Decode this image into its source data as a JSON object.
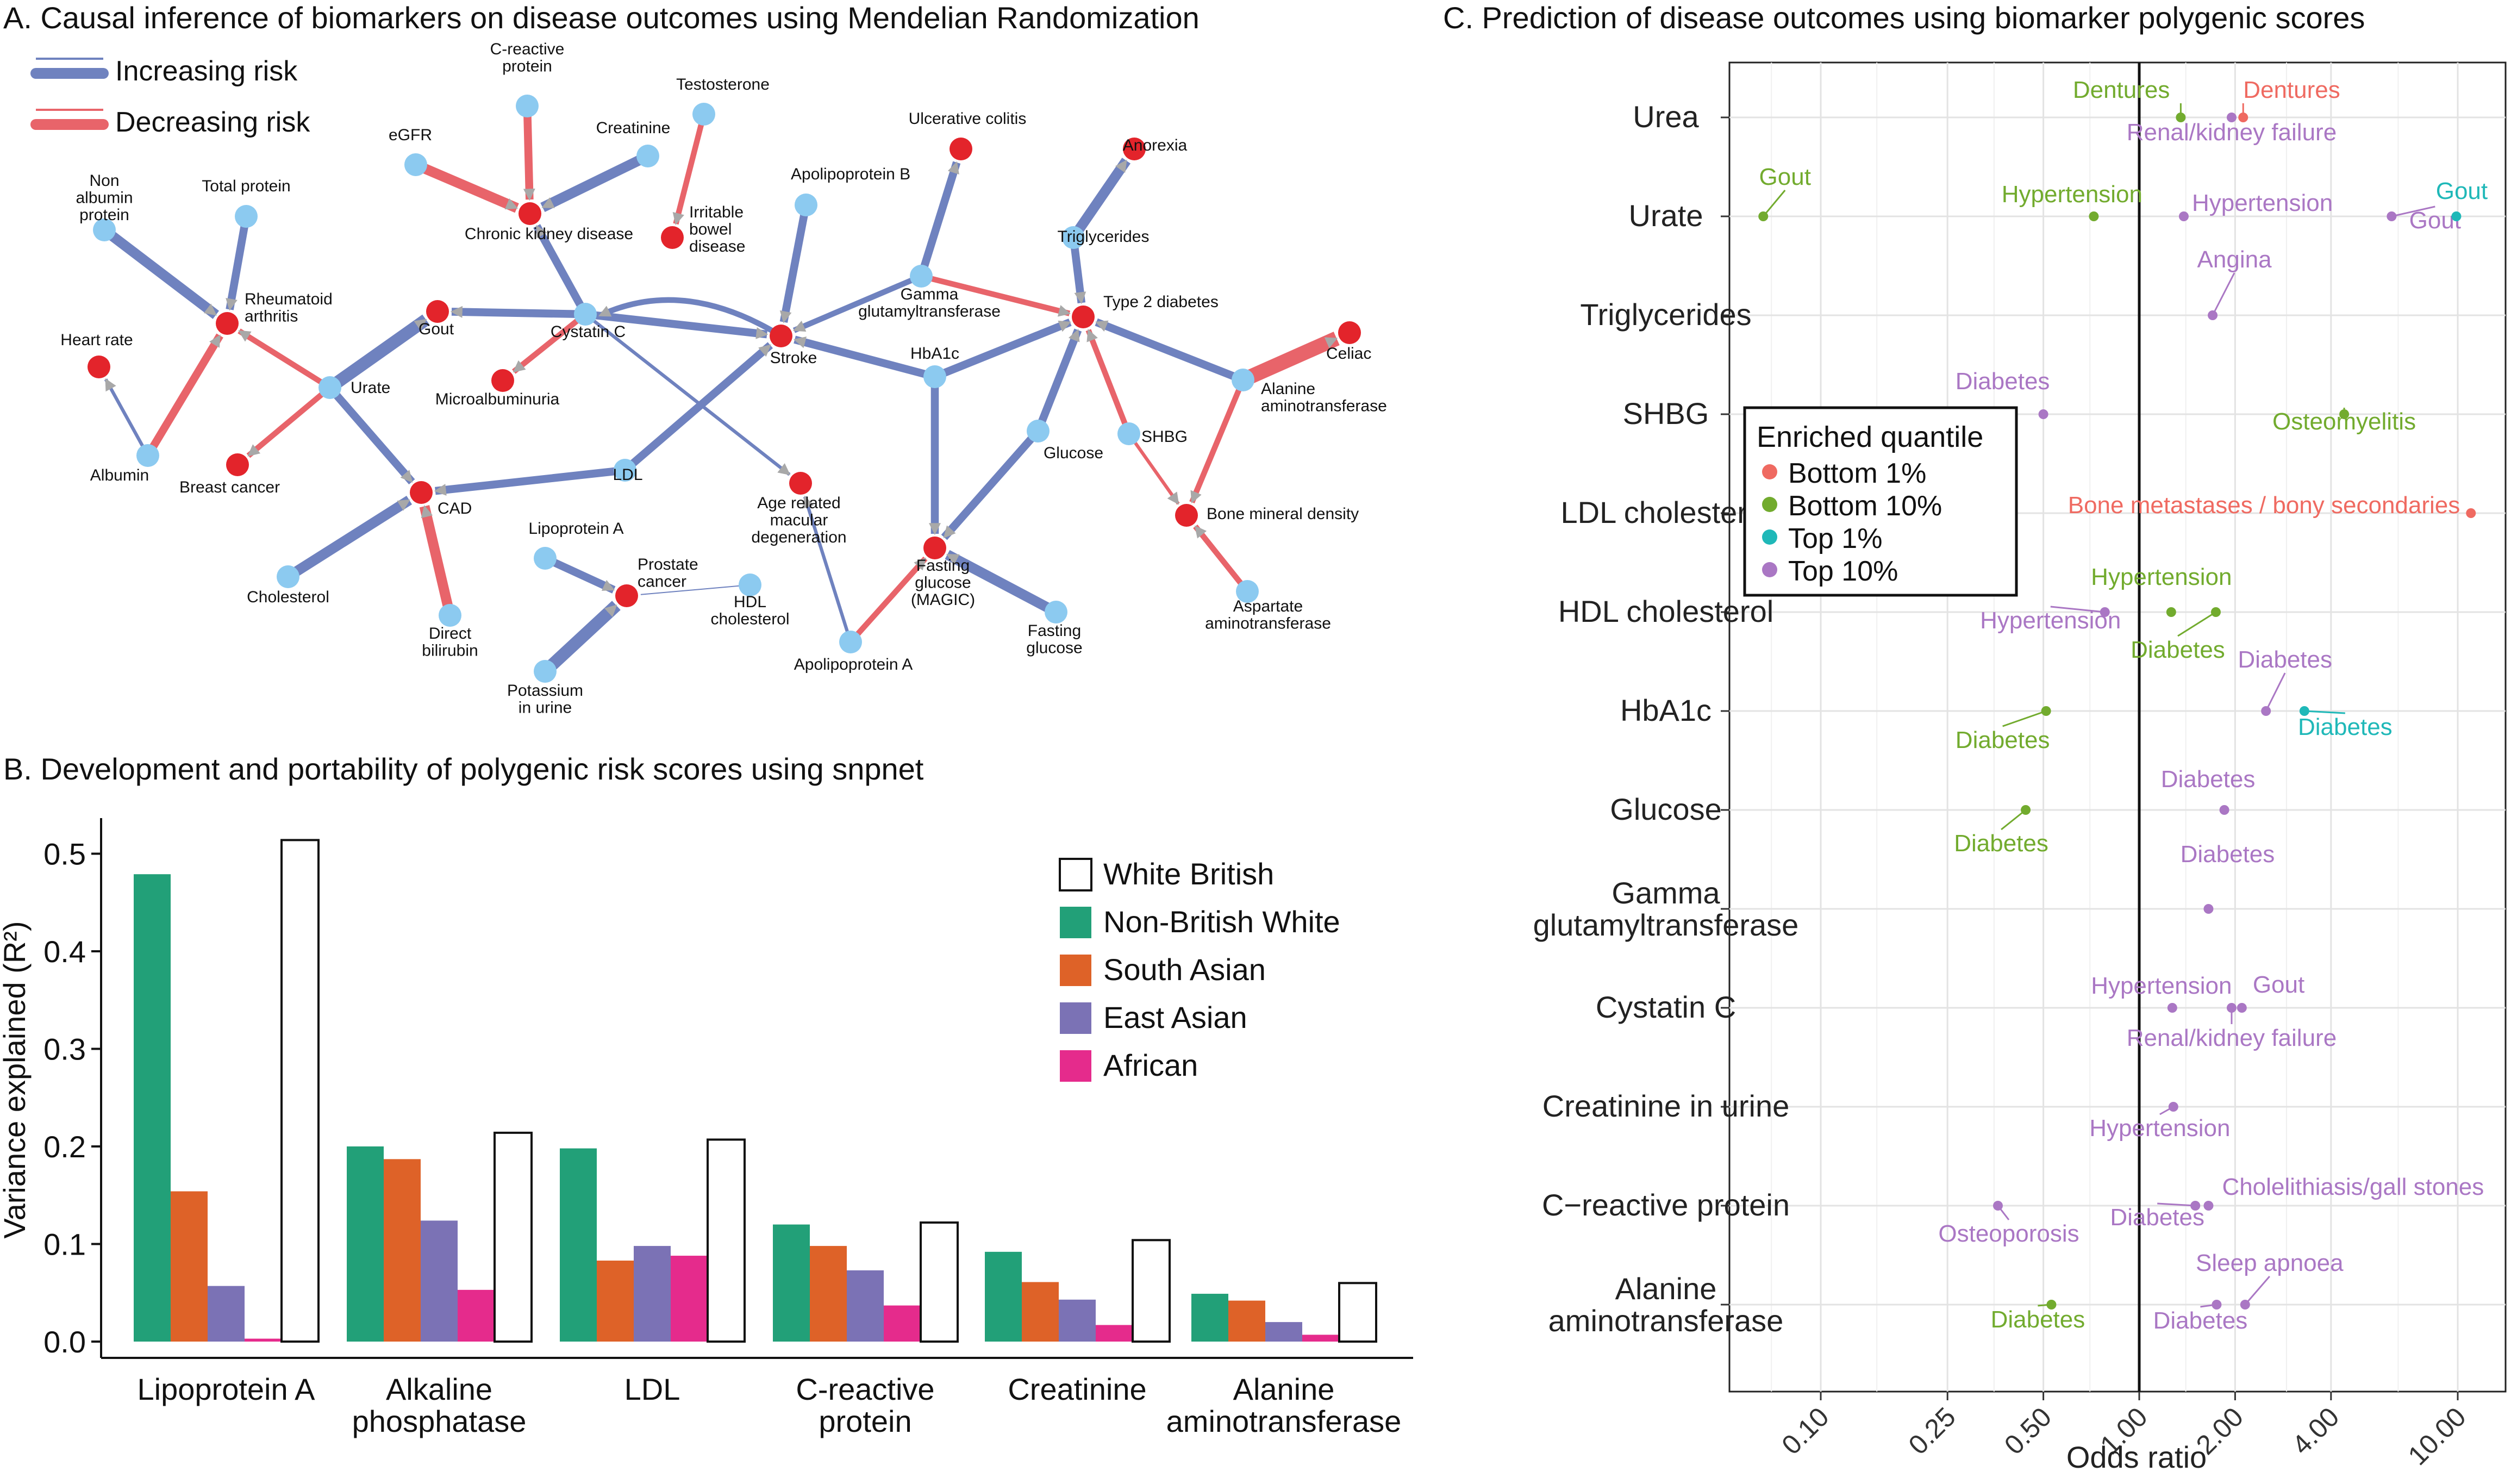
{
  "panel_a": {
    "title": "A. Causal inference of biomarkers on disease outcomes using Mendelian Randomization",
    "legend": [
      {
        "label": "Increasing risk",
        "color": "#6f82bf"
      },
      {
        "label": "Decreasing risk",
        "color": "#e8646a"
      }
    ],
    "nodes": [
      {
        "id": "crp",
        "label": "C-reactive\nprotein",
        "type": "biomarker"
      },
      {
        "id": "testo",
        "label": "Testosterone",
        "type": "biomarker"
      },
      {
        "id": "creat",
        "label": "Creatinine",
        "type": "biomarker"
      },
      {
        "id": "egfr",
        "label": "eGFR",
        "type": "biomarker"
      },
      {
        "id": "ckd",
        "label": "Chronic kidney disease",
        "type": "disease"
      },
      {
        "id": "ibd",
        "label": "Irritable\nbowel\ndisease",
        "type": "disease"
      },
      {
        "id": "nap",
        "label": "Non\nalbumin\nprotein",
        "type": "biomarker"
      },
      {
        "id": "tp",
        "label": "Total protein",
        "type": "biomarker"
      },
      {
        "id": "ra",
        "label": "Rheumatoid\narthritis",
        "type": "disease"
      },
      {
        "id": "hr",
        "label": "Heart rate",
        "type": "disease"
      },
      {
        "id": "alb",
        "label": "Albumin",
        "type": "biomarker"
      },
      {
        "id": "gout",
        "label": "Gout",
        "type": "disease"
      },
      {
        "id": "cysc",
        "label": "Cystatin C",
        "type": "biomarker"
      },
      {
        "id": "urate",
        "label": "Urate",
        "type": "biomarker"
      },
      {
        "id": "micro",
        "label": "Microalbuminuria",
        "type": "disease"
      },
      {
        "id": "bc",
        "label": "Breast cancer",
        "type": "disease"
      },
      {
        "id": "cad",
        "label": "CAD",
        "type": "disease"
      },
      {
        "id": "chol",
        "label": "Cholesterol",
        "type": "biomarker"
      },
      {
        "id": "dbili",
        "label": "Direct\nbilirubin",
        "type": "biomarker"
      },
      {
        "id": "lpa",
        "label": "Lipoprotein A",
        "type": "biomarker"
      },
      {
        "id": "prostate",
        "label": "Prostate\ncancer",
        "type": "disease"
      },
      {
        "id": "hdl",
        "label": "HDL\ncholesterol",
        "type": "biomarker"
      },
      {
        "id": "kur",
        "label": "Potassium\nin urine",
        "type": "biomarker"
      },
      {
        "id": "apob",
        "label": "Apolipoprotein B",
        "type": "biomarker"
      },
      {
        "id": "stroke",
        "label": "Stroke",
        "type": "disease"
      },
      {
        "id": "ggt",
        "label": "Gamma\nglutamyltransferase",
        "type": "biomarker"
      },
      {
        "id": "uc",
        "label": "Ulcerative colitis",
        "type": "disease"
      },
      {
        "id": "anorexia",
        "label": "Anorexia",
        "type": "disease"
      },
      {
        "id": "tg",
        "label": "Triglycerides",
        "type": "biomarker"
      },
      {
        "id": "t2d",
        "label": "Type 2 diabetes",
        "type": "disease"
      },
      {
        "id": "hba1c",
        "label": "HbA1c",
        "type": "biomarker"
      },
      {
        "id": "ldl",
        "label": "LDL",
        "type": "biomarker"
      },
      {
        "id": "amd",
        "label": "Age related\nmacular\ndegeneration",
        "type": "disease"
      },
      {
        "id": "glucose",
        "label": "Glucose",
        "type": "biomarker"
      },
      {
        "id": "shbg",
        "label": "SHBG",
        "type": "biomarker"
      },
      {
        "id": "alt",
        "label": "Alanine\naminotransferase",
        "type": "biomarker"
      },
      {
        "id": "celiac",
        "label": "Celiac",
        "type": "disease"
      },
      {
        "id": "bmd",
        "label": "Bone mineral density",
        "type": "disease"
      },
      {
        "id": "ast",
        "label": "Aspartate\naminotransferase",
        "type": "biomarker"
      },
      {
        "id": "fgm",
        "label": "Fasting\nglucose\n(MAGIC)",
        "type": "disease"
      },
      {
        "id": "fg",
        "label": "Fasting\nglucose",
        "type": "biomarker"
      },
      {
        "id": "apoa",
        "label": "Apolipoprotein A",
        "type": "biomarker"
      }
    ],
    "edges": [
      {
        "from": "crp",
        "to": "ckd",
        "effect": "decreasing",
        "weight": 3
      },
      {
        "from": "egfr",
        "to": "ckd",
        "effect": "decreasing",
        "weight": 4
      },
      {
        "from": "creat",
        "to": "ckd",
        "effect": "increasing",
        "weight": 4
      },
      {
        "from": "testo",
        "to": "ibd",
        "effect": "decreasing",
        "weight": 2
      },
      {
        "from": "cysc",
        "to": "ckd",
        "effect": "increasing",
        "weight": 3
      },
      {
        "from": "nap",
        "to": "ra",
        "effect": "increasing",
        "weight": 4
      },
      {
        "from": "tp",
        "to": "ra",
        "effect": "increasing",
        "weight": 3
      },
      {
        "from": "urate",
        "to": "ra",
        "effect": "decreasing",
        "weight": 2
      },
      {
        "from": "alb",
        "to": "hr",
        "effect": "increasing",
        "weight": 1
      },
      {
        "from": "alb",
        "to": "ra",
        "effect": "decreasing",
        "weight": 3
      },
      {
        "from": "urate",
        "to": "gout",
        "effect": "increasing",
        "weight": 5
      },
      {
        "from": "cysc",
        "to": "gout",
        "effect": "increasing",
        "weight": 3
      },
      {
        "from": "cysc",
        "to": "micro",
        "effect": "decreasing",
        "weight": 2
      },
      {
        "from": "cysc",
        "to": "stroke",
        "effect": "increasing",
        "weight": 3
      },
      {
        "from": "stroke",
        "to": "cysc",
        "effect": "increasing",
        "weight": 2
      },
      {
        "from": "cysc",
        "to": "amd",
        "effect": "increasing",
        "weight": 1
      },
      {
        "from": "urate",
        "to": "bc",
        "effect": "decreasing",
        "weight": 2
      },
      {
        "from": "urate",
        "to": "cad",
        "effect": "increasing",
        "weight": 3
      },
      {
        "from": "chol",
        "to": "cad",
        "effect": "increasing",
        "weight": 4
      },
      {
        "from": "dbili",
        "to": "cad",
        "effect": "decreasing",
        "weight": 4
      },
      {
        "from": "ldl",
        "to": "cad",
        "effect": "increasing",
        "weight": 3
      },
      {
        "from": "ldl",
        "to": "stroke",
        "effect": "increasing",
        "weight": 3
      },
      {
        "from": "lpa",
        "to": "prostate",
        "effect": "increasing",
        "weight": 3
      },
      {
        "from": "kur",
        "to": "prostate",
        "effect": "increasing",
        "weight": 5
      },
      {
        "from": "apob",
        "to": "stroke",
        "effect": "increasing",
        "weight": 3
      },
      {
        "from": "hba1c",
        "to": "stroke",
        "effect": "increasing",
        "weight": 3
      },
      {
        "from": "ggt",
        "to": "stroke",
        "effect": "increasing",
        "weight": 2
      },
      {
        "from": "ggt",
        "to": "uc",
        "effect": "increasing",
        "weight": 3
      },
      {
        "from": "ggt",
        "to": "t2d",
        "effect": "decreasing",
        "weight": 2
      },
      {
        "from": "tg",
        "to": "anorexia",
        "effect": "increasing",
        "weight": 4
      },
      {
        "from": "tg",
        "to": "t2d",
        "effect": "increasing",
        "weight": 3
      },
      {
        "from": "hba1c",
        "to": "t2d",
        "effect": "increasing",
        "weight": 3
      },
      {
        "from": "hba1c",
        "to": "fgm",
        "effect": "increasing",
        "weight": 3
      },
      {
        "from": "glucose",
        "to": "t2d",
        "effect": "increasing",
        "weight": 3
      },
      {
        "from": "glucose",
        "to": "fgm",
        "effect": "increasing",
        "weight": 3
      },
      {
        "from": "shbg",
        "to": "t2d",
        "effect": "decreasing",
        "weight": 2
      },
      {
        "from": "shbg",
        "to": "bmd",
        "effect": "decreasing",
        "weight": 1
      },
      {
        "from": "alt",
        "to": "t2d",
        "effect": "increasing",
        "weight": 3
      },
      {
        "from": "alt",
        "to": "celiac",
        "effect": "decreasing",
        "weight": 6
      },
      {
        "from": "alt",
        "to": "bmd",
        "effect": "decreasing",
        "weight": 2
      },
      {
        "from": "ast",
        "to": "bmd",
        "effect": "decreasing",
        "weight": 2
      },
      {
        "from": "fg",
        "to": "fgm",
        "effect": "increasing",
        "weight": 4
      },
      {
        "from": "apoa",
        "to": "fgm",
        "effect": "decreasing",
        "weight": 2
      },
      {
        "from": "apoa",
        "to": "amd",
        "effect": "increasing",
        "weight": 1
      },
      {
        "from": "hdl",
        "to": "prostate",
        "effect": "increasing",
        "weight": 0
      }
    ]
  },
  "panel_b": {
    "title": "B. Development and portability of polygenic risk scores using snpnet",
    "legend_labels": [
      "White British",
      "Non-British White",
      "South Asian",
      "East Asian",
      "African"
    ]
  },
  "panel_c": {
    "title": "C. Prediction of disease outcomes using biomarker polygenic scores",
    "legend_title": "Enriched quantile"
  },
  "chart_data": [
    {
      "type": "bar",
      "ylabel": "Variance explained (R²)",
      "xlabel": "",
      "ylim": [
        0,
        0.54
      ],
      "yticks": [
        "0.0",
        "0.1",
        "0.2",
        "0.3",
        "0.4",
        "0.5"
      ],
      "categories": [
        "Lipoprotein A",
        "Alkaline\nphosphatase",
        "LDL",
        "C-reactive\nprotein",
        "Creatinine",
        "Alanine\naminotransferase"
      ],
      "series": [
        {
          "name": "Non-British White",
          "color": "#22a078",
          "values": [
            0.479,
            0.2,
            0.198,
            0.12,
            0.092,
            0.049
          ]
        },
        {
          "name": "South Asian",
          "color": "#de6228",
          "values": [
            0.154,
            0.187,
            0.083,
            0.098,
            0.061,
            0.042
          ]
        },
        {
          "name": "East Asian",
          "color": "#7b72b5",
          "values": [
            0.057,
            0.124,
            0.098,
            0.073,
            0.043,
            0.02
          ]
        },
        {
          "name": "African",
          "color": "#e52b8c",
          "values": [
            0.003,
            0.053,
            0.088,
            0.037,
            0.017,
            0.007
          ]
        },
        {
          "name": "White British",
          "color": "#ffffff",
          "values": [
            0.514,
            0.214,
            0.207,
            0.122,
            0.104,
            0.06
          ]
        }
      ],
      "legend_position": "top-right"
    },
    {
      "type": "scatter",
      "xlabel": "Odds ratio",
      "x_scale": "log",
      "xlim": [
        0.06,
        12.5
      ],
      "xticks": [
        "0.10",
        "0.25",
        "0.50",
        "1.00",
        "2.00",
        "4.00",
        "10.00"
      ],
      "vline": 1.0,
      "categories": [
        "Urea",
        "Urate",
        "Triglycerides",
        "SHBG",
        "LDL cholesterol",
        "HDL cholesterol",
        "HbA1c",
        "Glucose",
        "Gamma\nglutamyltransferase",
        "Cystatin C",
        "Creatinine in urine",
        "C−reactive protein",
        "Alanine\naminotransferase"
      ],
      "legend": {
        "title": "Enriched quantile",
        "entries": [
          {
            "name": "Bottom 1%",
            "color": "#ef6a61"
          },
          {
            "name": "Bottom 10%",
            "color": "#72ab2e"
          },
          {
            "name": "Top 1%",
            "color": "#1fb8b8"
          },
          {
            "name": "Top 10%",
            "color": "#aa77c4"
          }
        ]
      },
      "points": [
        {
          "biomarker": "Urea",
          "or": 1.35,
          "group": "Bottom 10%",
          "label": "Dentures"
        },
        {
          "biomarker": "Urea",
          "or": 2.12,
          "group": "Bottom 1%",
          "label": "Dentures"
        },
        {
          "biomarker": "Urea",
          "or": 1.95,
          "group": "Top 10%",
          "label": "Renal/kidney failure"
        },
        {
          "biomarker": "Urate",
          "or": 0.066,
          "group": "Bottom 10%",
          "label": "Gout"
        },
        {
          "biomarker": "Urate",
          "or": 0.72,
          "group": "Bottom 10%",
          "label": "Hypertension"
        },
        {
          "biomarker": "Urate",
          "or": 1.38,
          "group": "Top 10%",
          "label": "Hypertension"
        },
        {
          "biomarker": "Urate",
          "or": 6.2,
          "group": "Top 10%",
          "label": "Gout"
        },
        {
          "biomarker": "Urate",
          "or": 9.9,
          "group": "Top 1%",
          "label": "Gout"
        },
        {
          "biomarker": "Triglycerides",
          "or": 1.7,
          "group": "Top 10%",
          "label": "Angina"
        },
        {
          "biomarker": "SHBG",
          "or": 0.5,
          "group": "Top 10%",
          "label": "Diabetes"
        },
        {
          "biomarker": "SHBG",
          "or": 4.4,
          "group": "Bottom 10%",
          "label": "Osteomyelitis"
        },
        {
          "biomarker": "LDL cholesterol",
          "or": 11.0,
          "group": "Bottom 1%",
          "label": "Bone metastases / bony secondaries"
        },
        {
          "biomarker": "HDL cholesterol",
          "or": 0.78,
          "group": "Top 10%",
          "label": "Hypertension"
        },
        {
          "biomarker": "HDL cholesterol",
          "or": 1.26,
          "group": "Bottom 10%",
          "label": "Hypertension"
        },
        {
          "biomarker": "HDL cholesterol",
          "or": 1.74,
          "group": "Bottom 10%",
          "label": "Diabetes"
        },
        {
          "biomarker": "HbA1c",
          "or": 0.51,
          "group": "Bottom 10%",
          "label": "Diabetes"
        },
        {
          "biomarker": "HbA1c",
          "or": 2.5,
          "group": "Top 10%",
          "label": "Diabetes"
        },
        {
          "biomarker": "HbA1c",
          "or": 3.3,
          "group": "Top 1%",
          "label": "Diabetes"
        },
        {
          "biomarker": "Glucose",
          "or": 0.44,
          "group": "Bottom 10%",
          "label": "Diabetes"
        },
        {
          "biomarker": "Glucose",
          "or": 1.85,
          "group": "Top 10%",
          "label": "Diabetes"
        },
        {
          "biomarker": "Gamma\nglutamyltransferase",
          "or": 1.65,
          "group": "Top 10%",
          "label": "Diabetes"
        },
        {
          "biomarker": "Cystatin C",
          "or": 1.27,
          "group": "Top 10%",
          "label": "Hypertension"
        },
        {
          "biomarker": "Cystatin C",
          "or": 1.95,
          "group": "Top 10%",
          "label": "Renal/kidney failure"
        },
        {
          "biomarker": "Cystatin C",
          "or": 2.1,
          "group": "Top 10%",
          "label": "Gout"
        },
        {
          "biomarker": "Creatinine in urine",
          "or": 1.28,
          "group": "Top 10%",
          "label": "Hypertension"
        },
        {
          "biomarker": "C−reactive protein",
          "or": 0.36,
          "group": "Top 10%",
          "label": "Osteoporosis"
        },
        {
          "biomarker": "C−reactive protein",
          "or": 1.5,
          "group": "Top 10%",
          "label": "Diabetes"
        },
        {
          "biomarker": "C−reactive protein",
          "or": 1.65,
          "group": "Top 10%",
          "label": "Cholelithiasis/gall stones"
        },
        {
          "biomarker": "Alanine\naminotransferase",
          "or": 0.53,
          "group": "Bottom 10%",
          "label": "Diabetes"
        },
        {
          "biomarker": "Alanine\naminotransferase",
          "or": 1.75,
          "group": "Top 10%",
          "label": "Diabetes"
        },
        {
          "biomarker": "Alanine\naminotransferase",
          "or": 2.15,
          "group": "Top 10%",
          "label": "Sleep apnoea"
        }
      ]
    }
  ]
}
